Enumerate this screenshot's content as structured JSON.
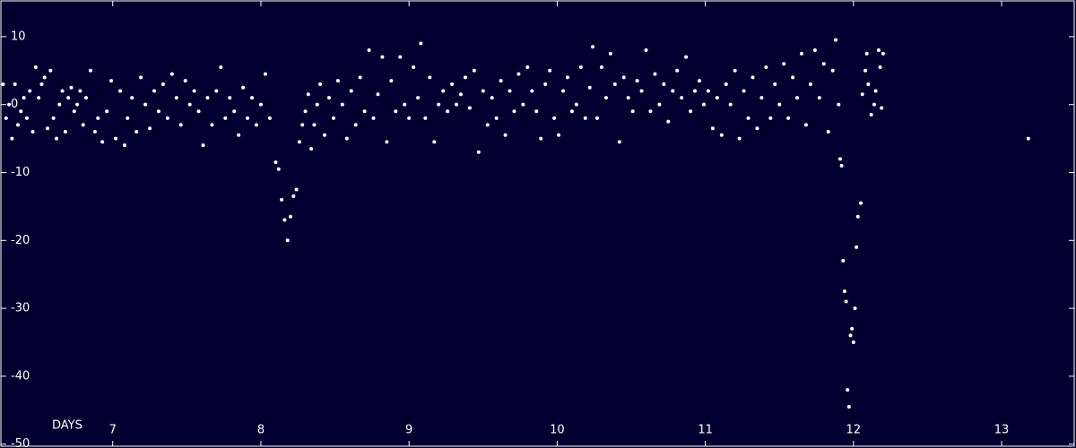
{
  "chart_data": {
    "type": "scatter",
    "x_label": "DAYS",
    "color": "#ffffff",
    "xlim": [
      6.245,
      13.49
    ],
    "ylim": [
      -50.3,
      15.26
    ],
    "xticks": [
      7,
      8,
      9,
      10,
      11,
      12,
      13
    ],
    "yticks": [
      10,
      0,
      -10,
      -20,
      -30,
      -40,
      -50
    ],
    "x": [
      6.26,
      6.28,
      6.3,
      6.32,
      6.34,
      6.36,
      6.38,
      6.4,
      6.42,
      6.44,
      6.46,
      6.48,
      6.5,
      6.52,
      6.54,
      6.56,
      6.58,
      6.6,
      6.62,
      6.64,
      6.66,
      6.68,
      6.7,
      6.72,
      6.74,
      6.76,
      6.78,
      6.8,
      6.82,
      6.85,
      6.88,
      6.9,
      6.93,
      6.96,
      6.99,
      7.02,
      7.05,
      7.08,
      7.1,
      7.13,
      7.16,
      7.19,
      7.22,
      7.25,
      7.28,
      7.31,
      7.34,
      7.37,
      7.4,
      7.43,
      7.46,
      7.49,
      7.52,
      7.55,
      7.58,
      7.61,
      7.64,
      7.67,
      7.7,
      7.73,
      7.76,
      7.79,
      7.82,
      7.85,
      7.88,
      7.91,
      7.94,
      7.97,
      8.0,
      8.03,
      8.06,
      8.1,
      8.12,
      8.14,
      8.16,
      8.18,
      8.2,
      8.22,
      8.24,
      8.26,
      8.28,
      8.3,
      8.32,
      8.34,
      8.36,
      8.38,
      8.4,
      8.43,
      8.46,
      8.49,
      8.52,
      8.55,
      8.58,
      8.61,
      8.64,
      8.67,
      8.7,
      8.73,
      8.76,
      8.79,
      8.82,
      8.85,
      8.88,
      8.91,
      8.94,
      8.97,
      9.0,
      9.03,
      9.06,
      9.08,
      9.11,
      9.14,
      9.17,
      9.2,
      9.23,
      9.26,
      9.29,
      9.32,
      9.35,
      9.38,
      9.41,
      9.44,
      9.47,
      9.5,
      9.53,
      9.56,
      9.59,
      9.62,
      9.65,
      9.68,
      9.71,
      9.74,
      9.77,
      9.8,
      9.83,
      9.86,
      9.89,
      9.92,
      9.95,
      9.98,
      10.01,
      10.04,
      10.07,
      10.1,
      10.13,
      10.16,
      10.19,
      10.22,
      10.24,
      10.27,
      10.3,
      10.33,
      10.36,
      10.39,
      10.42,
      10.45,
      10.48,
      10.51,
      10.54,
      10.57,
      10.6,
      10.63,
      10.66,
      10.69,
      10.72,
      10.75,
      10.78,
      10.81,
      10.84,
      10.87,
      10.9,
      10.93,
      10.96,
      10.99,
      11.02,
      11.05,
      11.08,
      11.11,
      11.14,
      11.17,
      11.2,
      11.23,
      11.26,
      11.29,
      11.32,
      11.35,
      11.38,
      11.41,
      11.44,
      11.47,
      11.5,
      11.53,
      11.56,
      11.59,
      11.62,
      11.65,
      11.68,
      11.71,
      11.74,
      11.77,
      11.8,
      11.83,
      11.86,
      11.88,
      11.9,
      11.91,
      11.92,
      11.93,
      11.94,
      11.95,
      11.96,
      11.97,
      11.98,
      11.99,
      12.0,
      12.01,
      12.02,
      12.03,
      12.05,
      12.06,
      12.08,
      12.09,
      12.1,
      12.12,
      12.14,
      12.15,
      12.17,
      12.18,
      12.19,
      12.2,
      13.18
    ],
    "values": [
      3,
      -2,
      0,
      -5,
      3,
      -3,
      -1,
      1,
      -2,
      2,
      -4,
      5.5,
      1,
      3,
      4,
      -3.5,
      5,
      -2,
      -5,
      0,
      2,
      -4,
      1,
      2.5,
      -1,
      0,
      2,
      -3,
      1,
      5,
      -4,
      -2,
      -5.5,
      -1,
      3.5,
      -5,
      2,
      -6,
      -2,
      1,
      -4,
      4,
      0,
      -3.5,
      2,
      -1,
      3,
      -2,
      4.5,
      1,
      -3,
      3.5,
      0,
      2,
      -1,
      -6,
      1,
      -3,
      2,
      5.5,
      -2,
      1,
      -1,
      -4.5,
      2.5,
      -2,
      1,
      -3,
      0,
      4.5,
      -2,
      -8.5,
      -9.5,
      -14,
      -17,
      -20,
      -16.5,
      -13.5,
      -12.5,
      -5.5,
      -3,
      -1,
      1.5,
      -6.5,
      -3,
      0,
      3,
      -4.5,
      1,
      -2,
      3.5,
      0,
      -5,
      2,
      -3,
      4,
      -1,
      8,
      -2,
      1.5,
      7,
      -5.5,
      3.5,
      -1,
      7,
      0,
      -2,
      5.5,
      1,
      9,
      -2,
      4,
      -5.5,
      0,
      2,
      -1,
      3,
      0,
      1.5,
      4,
      -0.5,
      5,
      -7,
      2,
      -3,
      1,
      -2,
      3.5,
      -4.5,
      2,
      -1,
      4.5,
      0,
      5.5,
      2,
      -1,
      -5,
      3,
      5,
      -2,
      -4.5,
      2,
      4,
      -1,
      0,
      5.5,
      -2,
      2.5,
      8.5,
      -2,
      5.5,
      1,
      7.5,
      3,
      -5.5,
      4,
      1,
      -1,
      3.5,
      2,
      8,
      -1,
      4.5,
      0,
      3,
      -2.5,
      2,
      5,
      1,
      7,
      -1,
      2,
      3.5,
      0,
      2,
      -3.5,
      1,
      -4.5,
      3,
      0,
      5,
      -5,
      2,
      -2,
      4,
      -3.5,
      1,
      5.5,
      -2,
      3,
      0,
      6,
      -2,
      4,
      1,
      7.5,
      -3,
      3,
      8,
      1,
      6,
      -4,
      5,
      9.5,
      0,
      -8,
      -9,
      -23,
      -27.5,
      -29,
      -42,
      -44.5,
      -34,
      -33,
      -35,
      -30,
      -21,
      -16.5,
      -14.5,
      1.5,
      5,
      7.5,
      3,
      -1.5,
      0,
      2,
      8,
      5.5,
      -0.5,
      7.5,
      -5
    ]
  }
}
